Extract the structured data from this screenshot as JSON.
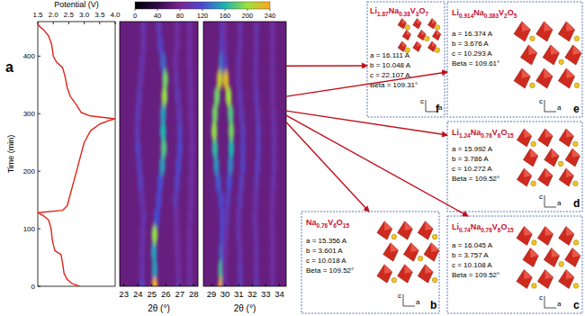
{
  "panel_label": "a",
  "chart_data": [
    {
      "type": "line",
      "x_label": "Potential (V)",
      "y_label": "Time (min)",
      "xlim": [
        1.5,
        4.0
      ],
      "xticks": [
        1.5,
        {
          "value": 2,
          "label": "2.0"
        },
        2.5,
        {
          "value": 3,
          "label": "3.0"
        },
        3.5,
        {
          "value": 4,
          "label": "4.0"
        }
      ],
      "ylim": [
        0,
        460
      ],
      "yticks": [
        0,
        100,
        200,
        300,
        400
      ],
      "series": [
        {
          "color": "#e0241b",
          "x": [
            2.85,
            2.6,
            2.45,
            2.35,
            2.3,
            2.25,
            2.05,
            1.97,
            1.93,
            1.85,
            1.7,
            1.5,
            2.3,
            2.45,
            2.55,
            2.7,
            2.85,
            3.0,
            3.2,
            3.5,
            3.8,
            4.0,
            3.2,
            2.9,
            2.75,
            2.55,
            2.45,
            2.38,
            2.3,
            2.1,
            2.0,
            1.95,
            1.85,
            1.7,
            1.55,
            1.5
          ],
          "values": [
            0,
            5,
            12,
            22,
            40,
            55,
            62,
            80,
            100,
            115,
            122,
            128,
            132,
            140,
            160,
            190,
            220,
            250,
            270,
            282,
            288,
            291,
            296,
            302,
            315,
            330,
            345,
            365,
            380,
            390,
            400,
            420,
            435,
            445,
            452,
            456
          ]
        }
      ]
    },
    {
      "type": "heatmap",
      "x_label": "2θ (°)",
      "xlim": [
        22.7,
        28.3
      ],
      "xticks": [
        23,
        24,
        25,
        26,
        27,
        28
      ],
      "ylim": [
        0,
        460
      ],
      "tick_labels": "x",
      "colorbar": {
        "range": [
          0,
          240
        ],
        "ticks": [
          0,
          40,
          80,
          120,
          160,
          200,
          240
        ]
      },
      "background": 70,
      "time": [
        0,
        30,
        60,
        90,
        120,
        150,
        180,
        210,
        240,
        270,
        300,
        330,
        360,
        390,
        420,
        450
      ],
      "peaks": [
        {
          "two_theta": [
            25.2,
            25.2,
            25.15,
            25.2,
            25.35,
            25.5,
            25.6,
            25.75,
            25.85,
            25.8,
            25.8,
            25.9,
            25.95,
            25.8,
            25.6,
            25.5
          ],
          "intensity": [
            235,
            150,
            150,
            195,
            120,
            115,
            120,
            150,
            175,
            160,
            150,
            195,
            185,
            130,
            110,
            100
          ]
        },
        {
          "two_theta": [
            24.3,
            24.3,
            24.3,
            24.35,
            24.4,
            24.3,
            24.2,
            24.1,
            24.0,
            23.95,
            24.0,
            24.1,
            24.2,
            24.3,
            24.4,
            24.4
          ],
          "intensity": [
            110,
            95,
            95,
            95,
            95,
            95,
            105,
            105,
            110,
            100,
            100,
            100,
            95,
            95,
            95,
            95
          ]
        },
        {
          "two_theta": [
            26.9,
            26.9,
            26.85,
            26.8,
            26.75,
            26.7,
            26.8,
            26.9,
            27.0,
            27.0,
            26.95,
            26.85,
            26.75,
            26.7,
            26.8,
            26.8
          ],
          "intensity": [
            95,
            90,
            90,
            90,
            90,
            100,
            110,
            115,
            115,
            110,
            100,
            100,
            95,
            90,
            90,
            90
          ]
        },
        {
          "two_theta": [
            27.7,
            27.7,
            27.7,
            27.7,
            27.75,
            27.8,
            27.8,
            27.85,
            27.85,
            27.85,
            27.8,
            27.8,
            27.75,
            27.7,
            27.7,
            27.7
          ],
          "intensity": [
            90,
            90,
            90,
            90,
            90,
            90,
            90,
            90,
            90,
            90,
            90,
            90,
            90,
            90,
            90,
            90
          ]
        }
      ]
    },
    {
      "type": "heatmap",
      "x_label": "2θ (°)",
      "xlim": [
        28.4,
        34.5
      ],
      "xticks": [
        29,
        30,
        31,
        32,
        33,
        34
      ],
      "ylim": [
        0,
        460
      ],
      "tick_labels": "x",
      "background": 70,
      "time": [
        0,
        30,
        60,
        90,
        120,
        150,
        180,
        210,
        240,
        270,
        300,
        330,
        360,
        390,
        420,
        450
      ],
      "peaks": [
        {
          "two_theta": [
            29.7,
            29.7,
            29.75,
            29.8,
            29.8,
            29.7,
            29.5,
            29.35,
            29.25,
            29.2,
            29.25,
            29.4,
            29.6,
            29.75,
            29.8,
            29.8
          ],
          "intensity": [
            235,
            170,
            130,
            120,
            115,
            115,
            125,
            145,
            165,
            195,
            185,
            185,
            215,
            140,
            120,
            110
          ]
        },
        {
          "two_theta": [
            29.95,
            29.95,
            30.0,
            30.05,
            30.1,
            30.2,
            30.3,
            30.4,
            30.45,
            30.45,
            30.4,
            30.25,
            30.05,
            29.95,
            29.95,
            29.95
          ],
          "intensity": [
            90,
            90,
            90,
            95,
            100,
            105,
            120,
            140,
            160,
            185,
            175,
            200,
            225,
            110,
            95,
            90
          ]
        },
        {
          "two_theta": [
            31.1,
            31.1,
            31.1,
            31.0,
            31.0,
            31.1,
            31.2,
            31.3,
            31.3,
            31.3,
            31.2,
            31.1,
            31.0,
            31.0,
            31.1,
            31.1
          ],
          "intensity": [
            105,
            100,
            95,
            95,
            95,
            100,
            105,
            110,
            110,
            105,
            100,
            100,
            95,
            95,
            95,
            95
          ]
        },
        {
          "two_theta": [
            32.3,
            32.3,
            32.3,
            32.25,
            32.2,
            32.25,
            32.3,
            32.4,
            32.45,
            32.45,
            32.4,
            32.3,
            32.25,
            32.25,
            32.3,
            32.3
          ],
          "intensity": [
            100,
            95,
            95,
            95,
            95,
            95,
            100,
            105,
            105,
            105,
            100,
            100,
            95,
            95,
            95,
            95
          ]
        },
        {
          "two_theta": [
            33.5,
            33.5,
            33.5,
            33.5,
            33.45,
            33.5,
            33.55,
            33.6,
            33.6,
            33.6,
            33.55,
            33.5,
            33.5,
            33.5,
            33.5,
            33.5
          ],
          "intensity": [
            90,
            90,
            90,
            90,
            90,
            90,
            95,
            95,
            95,
            95,
            90,
            90,
            90,
            90,
            90,
            90
          ]
        }
      ]
    }
  ],
  "structures": [
    {
      "label": "b",
      "formula": "Na0.76V6O15",
      "params": [
        "a = 15.356 A",
        "b = 3.601 A",
        "c = 10.018 A",
        "Beta = 109.52°"
      ],
      "axes": [
        "c",
        "a"
      ],
      "time": 285
    },
    {
      "label": "c",
      "formula": "Li0.74Na0.76V6O15",
      "params": [
        "a = 16.045 A",
        "b = 3.757 A",
        "c = 10.108 A",
        "Beta = 109.52°"
      ],
      "axes": [
        "c",
        "a"
      ],
      "time": 297
    },
    {
      "label": "d",
      "formula": "Li1.24Na0.76V6O15",
      "params": [
        "a = 15.992 A",
        "b = 3.786 A",
        "c = 10.272 A",
        "Beta = 109.52°"
      ],
      "axes": [
        "c",
        "a"
      ],
      "time": 305
    },
    {
      "label": "e",
      "formula": "Li0.914Na0.383V2O5",
      "params": [
        "a = 16.374 A",
        "b = 3.676 A",
        "c = 10.293 A",
        "Beta = 109.61°"
      ],
      "axes": [
        "c",
        "a"
      ],
      "time": 330
    },
    {
      "label": "f",
      "formula": "Li1.87Na0.38V3O7",
      "params": [
        "a = 16.111 A",
        "b = 10.048 A",
        "c = 22.107 A",
        "Beta = 109.31°"
      ],
      "axes": [
        "c",
        "a"
      ],
      "time": 383
    }
  ]
}
